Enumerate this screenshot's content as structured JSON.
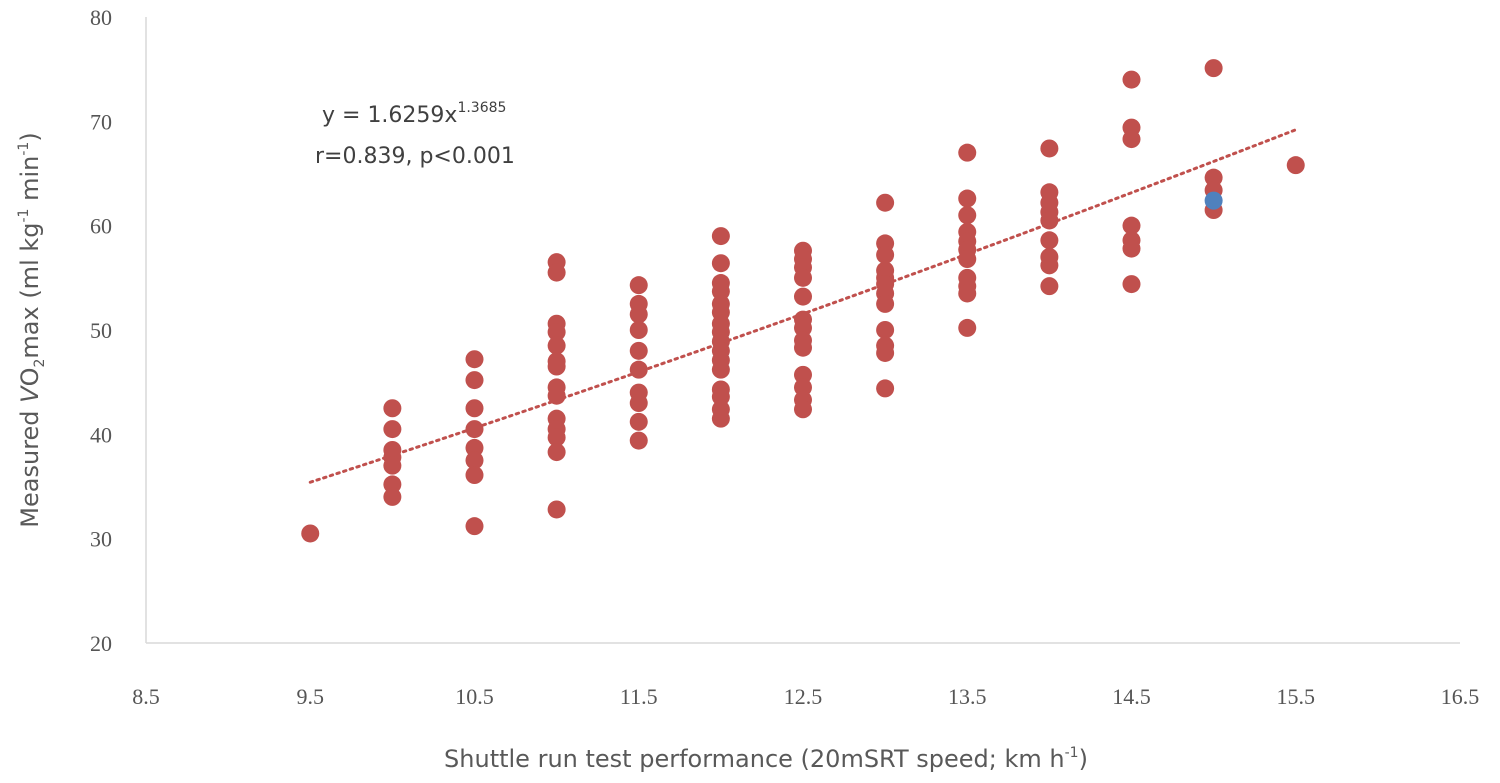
{
  "chart_data": {
    "type": "scatter",
    "xlabel": {
      "main": "Shuttle run test performance (20mSRT speed; km h",
      "sup": "-1",
      "tail": ")"
    },
    "ylabel": {
      "pre": "Measured ",
      "italic": "V",
      "o": "O",
      "sub": "2",
      "post": "max (ml kg",
      "sup1": "-1",
      "mid": " min",
      "sup2": "-1",
      "tail": ")"
    },
    "xlim": [
      8.5,
      16.5
    ],
    "ylim": [
      20,
      80
    ],
    "xticks": [
      "8.5",
      "9.5",
      "10.5",
      "11.5",
      "12.5",
      "13.5",
      "14.5",
      "15.5",
      "16.5"
    ],
    "yticks": [
      "20",
      "30",
      "40",
      "50",
      "60",
      "70",
      "80"
    ],
    "grid": false,
    "annotations": {
      "equation_main": "y = 1.6259x",
      "equation_exponent": "1.3685",
      "stats": "r=0.839, p<0.001"
    },
    "trendline": {
      "type": "power",
      "a": 1.6259,
      "b": 1.3685,
      "x_range": [
        9.5,
        15.5
      ],
      "color": "#c0504d",
      "style": "dotted"
    },
    "series": [
      {
        "color": "#c0504d",
        "points": [
          [
            9.5,
            30.5
          ],
          [
            10,
            42.5
          ],
          [
            10,
            40.5
          ],
          [
            10,
            38.5
          ],
          [
            10,
            37.8
          ],
          [
            10,
            37.0
          ],
          [
            10,
            35.2
          ],
          [
            10,
            34.0
          ],
          [
            10.5,
            47.2
          ],
          [
            10.5,
            45.2
          ],
          [
            10.5,
            42.5
          ],
          [
            10.5,
            40.5
          ],
          [
            10.5,
            38.7
          ],
          [
            10.5,
            37.5
          ],
          [
            10.5,
            36.1
          ],
          [
            10.5,
            31.2
          ],
          [
            11,
            56.5
          ],
          [
            11,
            55.5
          ],
          [
            11,
            50.6
          ],
          [
            11,
            49.8
          ],
          [
            11,
            48.5
          ],
          [
            11,
            47.0
          ],
          [
            11,
            46.5
          ],
          [
            11,
            44.5
          ],
          [
            11,
            43.7
          ],
          [
            11,
            41.5
          ],
          [
            11,
            40.5
          ],
          [
            11,
            39.7
          ],
          [
            11,
            38.3
          ],
          [
            11,
            32.8
          ],
          [
            11.5,
            54.3
          ],
          [
            11.5,
            52.5
          ],
          [
            11.5,
            51.5
          ],
          [
            11.5,
            50.0
          ],
          [
            11.5,
            48.0
          ],
          [
            11.5,
            46.2
          ],
          [
            11.5,
            44.0
          ],
          [
            11.5,
            43.0
          ],
          [
            11.5,
            41.2
          ],
          [
            11.5,
            39.4
          ],
          [
            12,
            59.0
          ],
          [
            12,
            56.4
          ],
          [
            12,
            54.5
          ],
          [
            12,
            53.7
          ],
          [
            12,
            52.5
          ],
          [
            12,
            51.7
          ],
          [
            12,
            50.6
          ],
          [
            12,
            49.8
          ],
          [
            12,
            48.9
          ],
          [
            12,
            48.0
          ],
          [
            12,
            47.1
          ],
          [
            12,
            46.2
          ],
          [
            12,
            44.3
          ],
          [
            12,
            43.6
          ],
          [
            12,
            42.4
          ],
          [
            12,
            41.5
          ],
          [
            12.5,
            57.6
          ],
          [
            12.5,
            56.8
          ],
          [
            12.5,
            56.0
          ],
          [
            12.5,
            55.0
          ],
          [
            12.5,
            53.2
          ],
          [
            12.5,
            51.0
          ],
          [
            12.5,
            50.2
          ],
          [
            12.5,
            49.0
          ],
          [
            12.5,
            48.3
          ],
          [
            12.5,
            45.7
          ],
          [
            12.5,
            44.5
          ],
          [
            12.5,
            43.3
          ],
          [
            12.5,
            42.4
          ],
          [
            13,
            62.2
          ],
          [
            13,
            58.3
          ],
          [
            13,
            57.2
          ],
          [
            13,
            55.7
          ],
          [
            13,
            55.0
          ],
          [
            13,
            54.4
          ],
          [
            13,
            53.5
          ],
          [
            13,
            52.5
          ],
          [
            13,
            50.0
          ],
          [
            13,
            48.5
          ],
          [
            13,
            47.8
          ],
          [
            13,
            44.4
          ],
          [
            13.5,
            67.0
          ],
          [
            13.5,
            62.6
          ],
          [
            13.5,
            61.0
          ],
          [
            13.5,
            59.4
          ],
          [
            13.5,
            58.5
          ],
          [
            13.5,
            57.7
          ],
          [
            13.5,
            56.8
          ],
          [
            13.5,
            55.0
          ],
          [
            13.5,
            54.2
          ],
          [
            13.5,
            53.5
          ],
          [
            13.5,
            50.2
          ],
          [
            14,
            67.4
          ],
          [
            14,
            63.2
          ],
          [
            14,
            62.2
          ],
          [
            14,
            61.3
          ],
          [
            14,
            60.5
          ],
          [
            14,
            58.6
          ],
          [
            14,
            57.0
          ],
          [
            14,
            56.2
          ],
          [
            14,
            54.2
          ],
          [
            14.5,
            74.0
          ],
          [
            14.5,
            69.4
          ],
          [
            14.5,
            68.3
          ],
          [
            14.5,
            60.0
          ],
          [
            14.5,
            58.6
          ],
          [
            14.5,
            57.8
          ],
          [
            14.5,
            54.4
          ],
          [
            15,
            75.1
          ],
          [
            15,
            64.6
          ],
          [
            15,
            63.4
          ],
          [
            15,
            61.5
          ],
          [
            15.5,
            65.8
          ]
        ]
      },
      {
        "color": "#4f81bd",
        "points": [
          [
            15,
            62.4
          ]
        ]
      }
    ]
  }
}
